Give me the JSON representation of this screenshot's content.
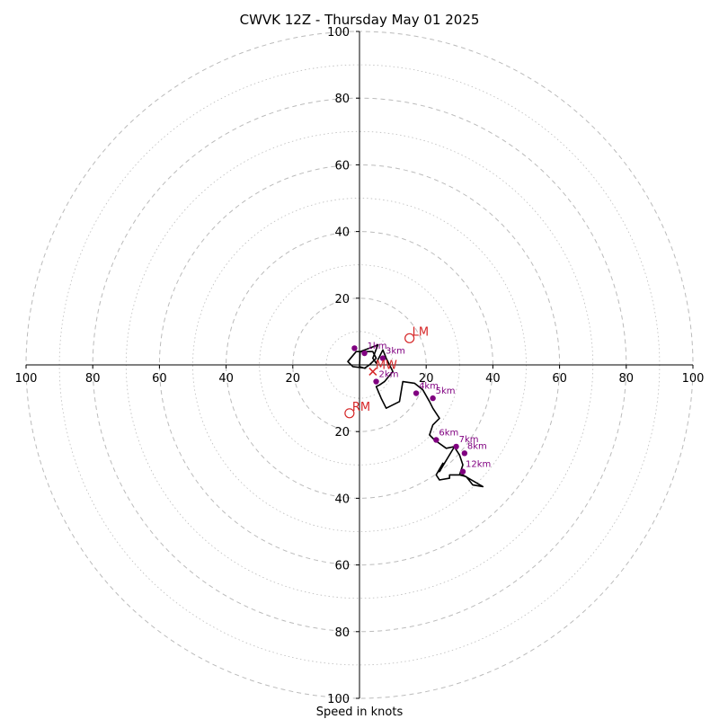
{
  "chart_data": {
    "type": "line",
    "title": "CWVK 12Z - Thursday May 01 2025",
    "xlabel": "Speed in knots",
    "ylabel": "",
    "xlim": [
      -100,
      100
    ],
    "ylim": [
      -100,
      100
    ],
    "grid": true,
    "ring_major": [
      20,
      40,
      60,
      80,
      100
    ],
    "ring_minor": [
      10,
      30,
      50,
      70,
      90
    ],
    "x_ticks": [
      "100",
      "80",
      "60",
      "40",
      "20",
      "",
      "20",
      "40",
      "60",
      "80",
      "100"
    ],
    "x_tick_values": [
      -100,
      -80,
      -60,
      -40,
      -20,
      0,
      20,
      40,
      60,
      80,
      100
    ],
    "y_ticks": [
      "100",
      "80",
      "60",
      "40",
      "20",
      "",
      "20",
      "40",
      "60",
      "80",
      "100"
    ],
    "y_tick_values": [
      100,
      80,
      60,
      40,
      20,
      0,
      -20,
      -40,
      -60,
      -80,
      -100
    ],
    "hodograph": {
      "name": "",
      "x": [
        2,
        -2,
        -3.5,
        -1,
        0.5,
        4,
        5,
        3,
        1.5,
        0,
        0.2,
        3,
        5.5,
        4,
        5,
        7,
        8,
        10,
        7.5,
        6,
        5,
        6.5,
        8,
        12,
        13,
        16.5,
        19,
        21,
        22,
        24,
        22,
        21,
        22.5,
        26,
        28.5,
        29,
        30,
        31,
        30,
        32,
        34,
        37,
        31,
        27,
        27,
        24,
        23,
        25,
        24,
        28.5
      ],
      "y": [
        -1,
        -0.5,
        1,
        4,
        4,
        4,
        2,
        0,
        -1,
        -0.5,
        4,
        5,
        6,
        2,
        0.5,
        4.5,
        2,
        -2,
        -5,
        -6,
        -6.5,
        -10,
        -13,
        -11,
        -5,
        -5.5,
        -7.5,
        -11,
        -13,
        -16,
        -18,
        -21,
        -22.5,
        -25,
        -24.5,
        -25.5,
        -27,
        -30,
        -33,
        -33.5,
        -36,
        -36.5,
        -33,
        -33,
        -34,
        -34.5,
        -33,
        -29.5,
        -32,
        -24.5
      ]
    },
    "height_markers": [
      {
        "label": "",
        "x": -1.5,
        "y": 5
      },
      {
        "label": "1km",
        "x": 1.5,
        "y": 3.5
      },
      {
        "label": "3km",
        "x": 7,
        "y": 2
      },
      {
        "label": "2km",
        "x": 5,
        "y": -5
      },
      {
        "label": "4km",
        "x": 17,
        "y": -8.5
      },
      {
        "label": "5km",
        "x": 22,
        "y": -10
      },
      {
        "label": "6km",
        "x": 23,
        "y": -22.5
      },
      {
        "label": "7km",
        "x": 29,
        "y": -24.5
      },
      {
        "label": "8km",
        "x": 31.5,
        "y": -26.5
      },
      {
        "label": "12km",
        "x": 31,
        "y": -32
      }
    ],
    "storm_markers": [
      {
        "label": "LM",
        "x": 15,
        "y": 8,
        "kind": "circle"
      },
      {
        "label": "MW",
        "x": 4,
        "y": -2,
        "kind": "x"
      },
      {
        "label": "RM",
        "x": -3,
        "y": -14.5,
        "kind": "circle"
      }
    ],
    "colors": {
      "line": "#000000",
      "height_markers": "#800080",
      "storm_markers": "#d62728",
      "grid": "#bbbbbb"
    }
  }
}
